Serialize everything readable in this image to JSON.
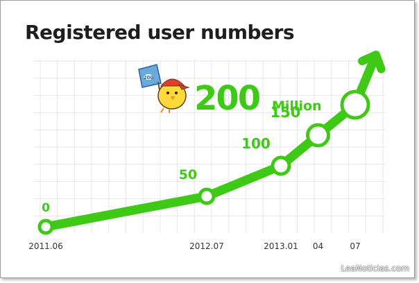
{
  "title": "Registered user numbers",
  "watermark": "LeaNoticias.com",
  "milestone": {
    "value": "200",
    "unit": "Million"
  },
  "colors": {
    "line": "#3ec917",
    "grid": "#e6e6e6",
    "axis_text": "#333333"
  },
  "chart_data": {
    "type": "line",
    "title": "Registered user numbers",
    "categories": [
      "2011.06",
      "2012.07",
      "2013.01",
      "04",
      "07"
    ],
    "x_dates": [
      "2011-06",
      "2012-07",
      "2013-01",
      "2013-04",
      "2013-07"
    ],
    "values": [
      0,
      50,
      100,
      150,
      200
    ],
    "value_labels": [
      "0",
      "50",
      "100",
      "150",
      ""
    ],
    "unit": "Million",
    "ylim": [
      0,
      220
    ],
    "grid": true,
    "arrow_at_end": true
  }
}
